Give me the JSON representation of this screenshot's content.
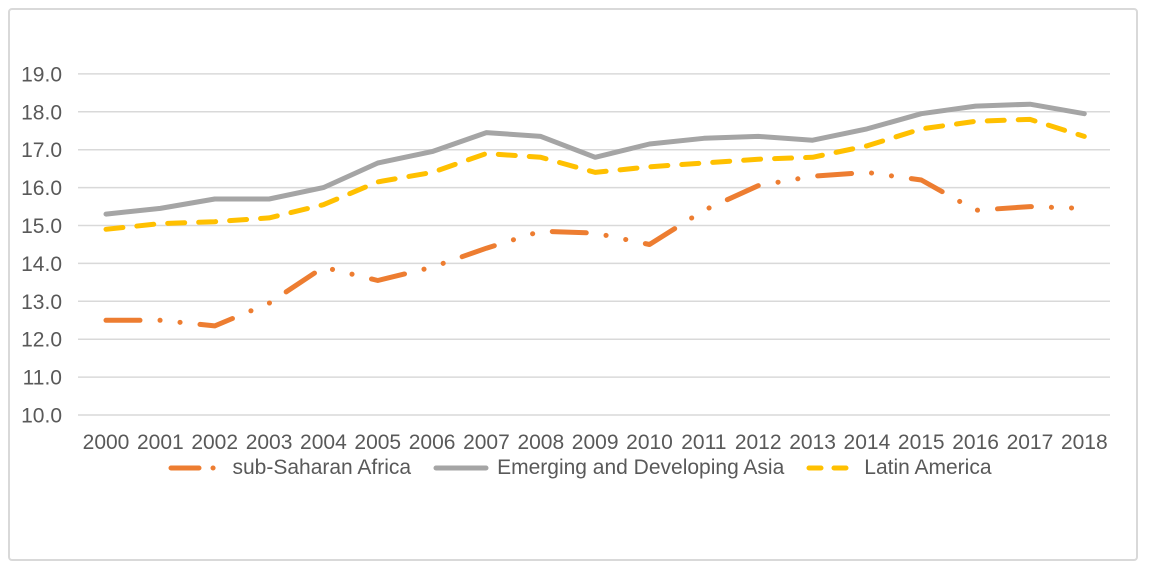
{
  "chart_data": {
    "type": "line",
    "title": "",
    "xlabel": "",
    "ylabel": "",
    "categories": [
      "2000",
      "2001",
      "2002",
      "2003",
      "2004",
      "2005",
      "2006",
      "2007",
      "2008",
      "2009",
      "2010",
      "2011",
      "2012",
      "2013",
      "2014",
      "2015",
      "2016",
      "2017",
      "2018"
    ],
    "series": [
      {
        "name": "sub-Saharan Africa",
        "color": "#ED7D31",
        "line_style": "long-dash-dot-dot",
        "values": [
          12.5,
          12.5,
          12.35,
          12.95,
          13.9,
          13.55,
          13.9,
          14.4,
          14.85,
          14.8,
          14.5,
          15.4,
          16.05,
          16.3,
          16.4,
          16.2,
          15.4,
          15.5,
          15.45
        ]
      },
      {
        "name": "Emerging and Developing Asia",
        "color": "#A5A5A5",
        "line_style": "solid",
        "values": [
          15.3,
          15.45,
          15.7,
          15.7,
          16.0,
          16.65,
          16.95,
          17.45,
          17.35,
          16.8,
          17.15,
          17.3,
          17.35,
          17.25,
          17.55,
          17.95,
          18.15,
          18.2,
          17.95
        ]
      },
      {
        "name": "Latin America",
        "color": "#FFC000",
        "line_style": "long-dash",
        "values": [
          14.9,
          15.05,
          15.1,
          15.2,
          15.55,
          16.15,
          16.4,
          16.9,
          16.8,
          16.4,
          16.55,
          16.65,
          16.75,
          16.8,
          17.1,
          17.55,
          17.75,
          17.8,
          17.35
        ]
      }
    ],
    "yticks": [
      "10.0",
      "11.0",
      "12.0",
      "13.0",
      "14.0",
      "15.0",
      "16.0",
      "17.0",
      "18.0",
      "19.0"
    ],
    "ylim": [
      10,
      19
    ],
    "grid": true,
    "legend_position": "bottom",
    "colors": {
      "gridline": "#D9D9D9",
      "tick_text": "#595959",
      "frame_border": "#D9D9D9",
      "background": "#FFFFFF"
    }
  }
}
